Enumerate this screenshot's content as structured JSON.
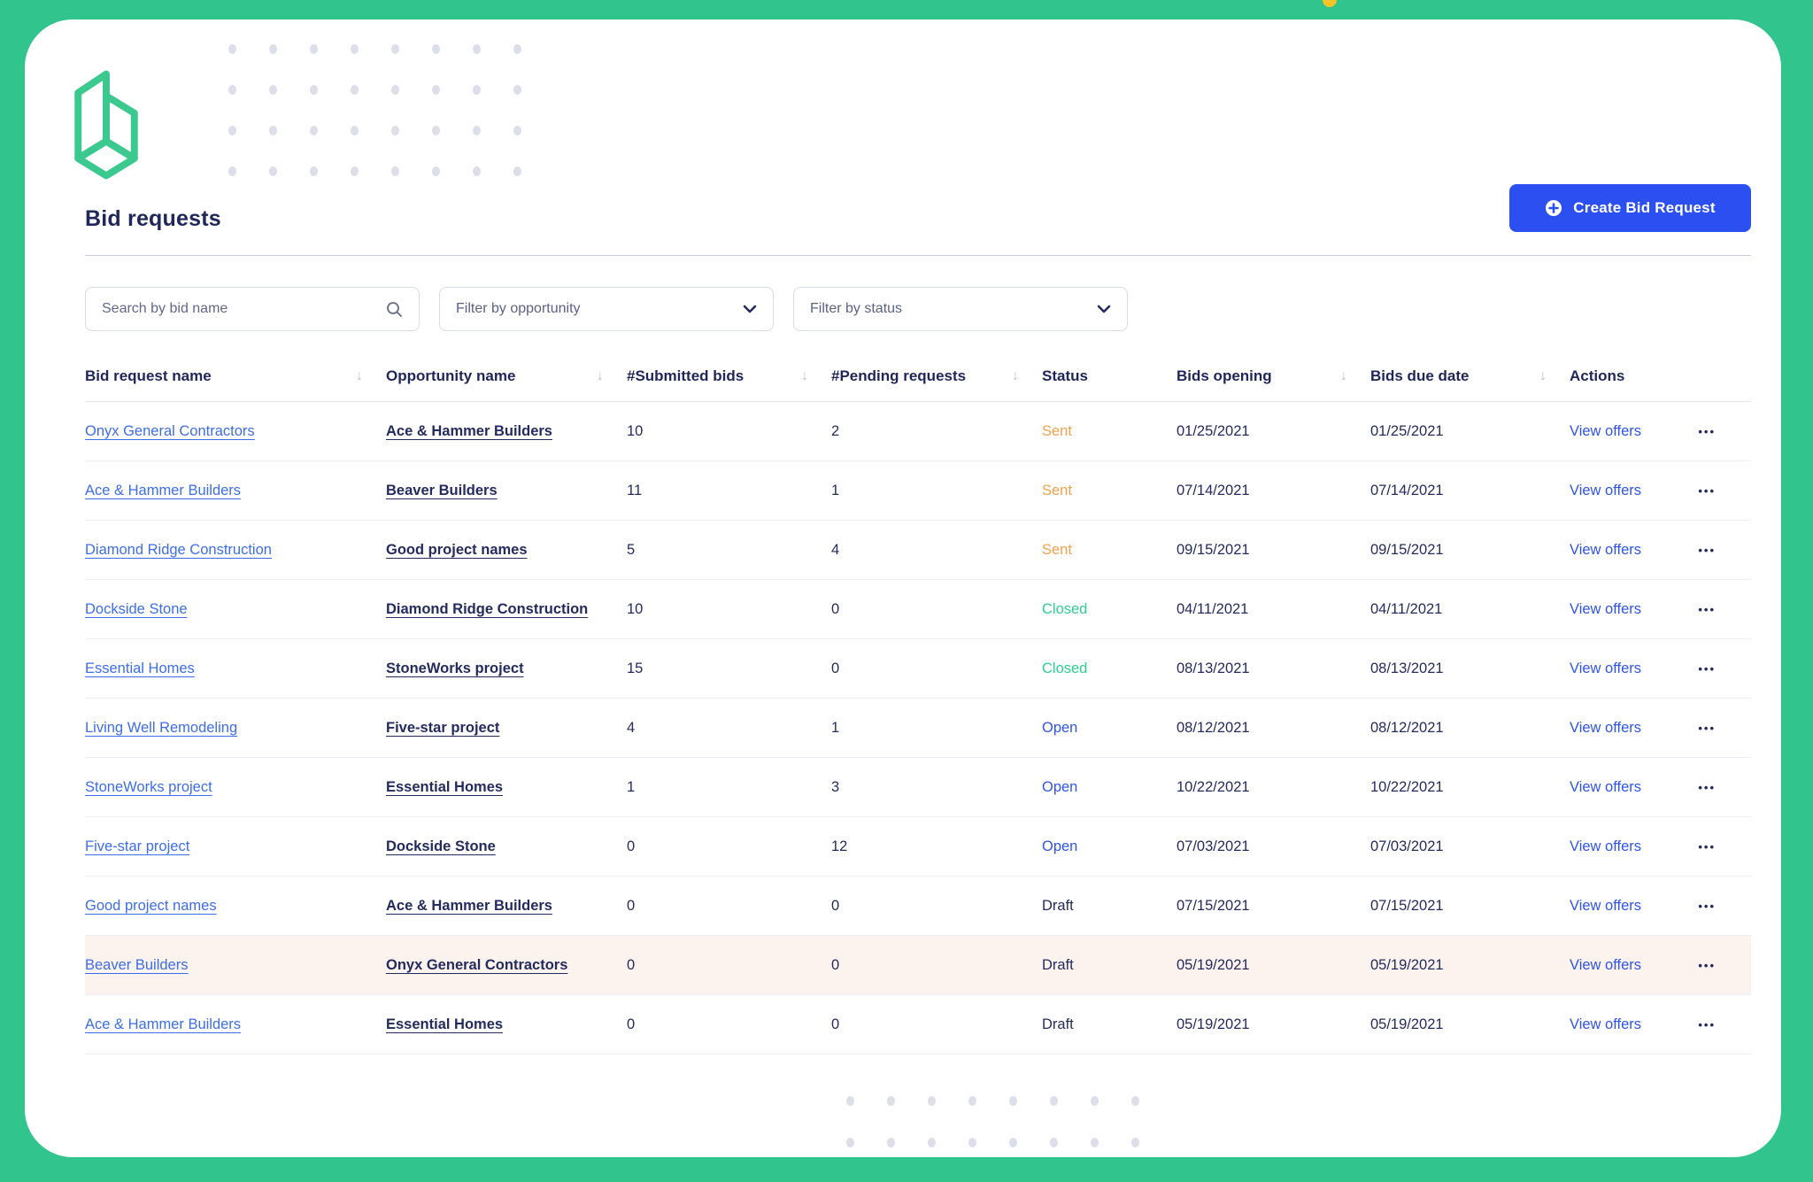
{
  "page": {
    "title": "Bid requests"
  },
  "toolbar": {
    "create_label": "Create Bid Request"
  },
  "filters": {
    "search_placeholder": "Search by bid name",
    "opportunity_placeholder": "Filter by opportunity",
    "status_placeholder": "Filter by status"
  },
  "glyphs": {
    "sort_arrow": "↓",
    "row_menu": "•••"
  },
  "colors": {
    "frame_green": "#31C48D",
    "brand_green": "#3BC98F",
    "button_blue": "#2B4FF0",
    "link_blue": "#3D6DEB",
    "navy": "#242B5E",
    "highlight_row_bg": "#FCF2EE",
    "yellow_tick": "#F6C426",
    "status_colors": {
      "Sent": "#F2A24C",
      "Closed": "#2DCE8F",
      "Open": "#2F54EB",
      "Draft": "#242B5E"
    }
  },
  "table": {
    "columns": [
      {
        "label": "Bid request name",
        "sortable": true
      },
      {
        "label": "Opportunity name",
        "sortable": true
      },
      {
        "label": "#Submitted bids",
        "sortable": true
      },
      {
        "label": "#Pending requests",
        "sortable": true
      },
      {
        "label": "Status",
        "sortable": false
      },
      {
        "label": "Bids opening",
        "sortable": true
      },
      {
        "label": "Bids due date",
        "sortable": true
      },
      {
        "label": "Actions",
        "sortable": false
      }
    ],
    "action_label": "View offers",
    "rows": [
      {
        "bid": "Onyx General Contractors",
        "opportunity": "Ace & Hammer Builders",
        "submitted": "10",
        "pending": "2",
        "status": "Sent",
        "opening": "01/25/2021",
        "due": "01/25/2021",
        "highlighted": false
      },
      {
        "bid": "Ace & Hammer Builders",
        "opportunity": "Beaver Builders",
        "submitted": "11",
        "pending": "1",
        "status": "Sent",
        "opening": "07/14/2021",
        "due": "07/14/2021",
        "highlighted": false
      },
      {
        "bid": "Diamond Ridge Construction",
        "opportunity": "Good project names",
        "submitted": "5",
        "pending": "4",
        "status": "Sent",
        "opening": "09/15/2021",
        "due": "09/15/2021",
        "highlighted": false
      },
      {
        "bid": "Dockside Stone",
        "opportunity": "Diamond Ridge Construction",
        "submitted": "10",
        "pending": "0",
        "status": "Closed",
        "opening": "04/11/2021",
        "due": "04/11/2021",
        "highlighted": false
      },
      {
        "bid": "Essential Homes",
        "opportunity": "StoneWorks project",
        "submitted": "15",
        "pending": "0",
        "status": "Closed",
        "opening": "08/13/2021",
        "due": "08/13/2021",
        "highlighted": false
      },
      {
        "bid": "Living Well Remodeling",
        "opportunity": "Five-star project",
        "submitted": "4",
        "pending": "1",
        "status": "Open",
        "opening": "08/12/2021",
        "due": "08/12/2021",
        "highlighted": false
      },
      {
        "bid": "StoneWorks project",
        "opportunity": "Essential Homes",
        "submitted": "1",
        "pending": "3",
        "status": "Open",
        "opening": "10/22/2021",
        "due": "10/22/2021",
        "highlighted": false
      },
      {
        "bid": "Five-star project",
        "opportunity": "Dockside Stone",
        "submitted": "0",
        "pending": "12",
        "status": "Open",
        "opening": "07/03/2021",
        "due": "07/03/2021",
        "highlighted": false
      },
      {
        "bid": "Good project names",
        "opportunity": "Ace & Hammer Builders",
        "submitted": "0",
        "pending": "0",
        "status": "Draft",
        "opening": "07/15/2021",
        "due": "07/15/2021",
        "highlighted": false
      },
      {
        "bid": "Beaver Builders",
        "opportunity": "Onyx General Contractors",
        "submitted": "0",
        "pending": "0",
        "status": "Draft",
        "opening": "05/19/2021",
        "due": "05/19/2021",
        "highlighted": true
      },
      {
        "bid": "Ace & Hammer Builders",
        "opportunity": "Essential Homes",
        "submitted": "0",
        "pending": "0",
        "status": "Draft",
        "opening": "05/19/2021",
        "due": "05/19/2021",
        "highlighted": false
      }
    ]
  }
}
